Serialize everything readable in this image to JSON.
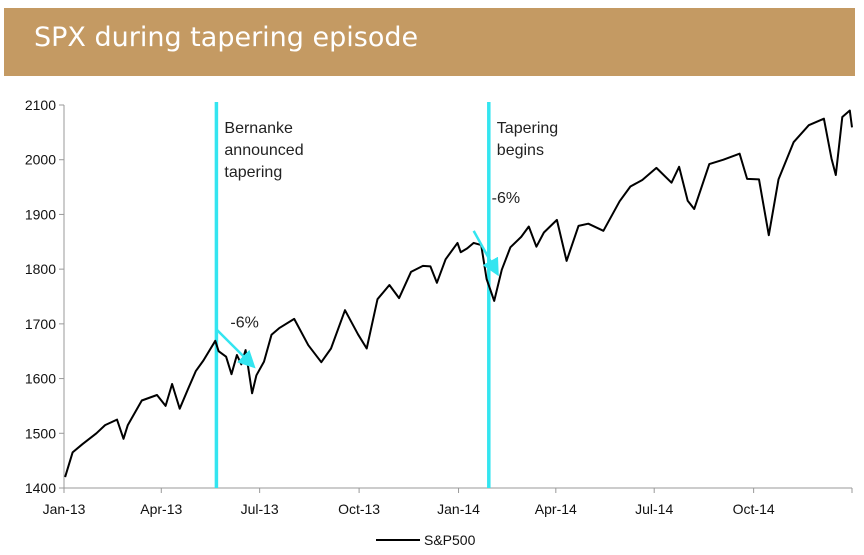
{
  "title": "SPX during tapering episode",
  "chart_data": {
    "type": "line",
    "title": "SPX during tapering episode",
    "xlabel": "",
    "ylabel": "",
    "x_tick_labels": [
      "Jan-13",
      "Apr-13",
      "Jul-13",
      "Oct-13",
      "Jan-14",
      "Apr-14",
      "Jul-14",
      "Oct-14"
    ],
    "y_ticks": [
      1400,
      1500,
      1600,
      1700,
      1800,
      1900,
      2000,
      2100
    ],
    "ylim": [
      1400,
      2100
    ],
    "xlim": [
      "2013-01-01",
      "2014-12-31"
    ],
    "legend": "bottom-center",
    "series": [
      {
        "name": "S&P500",
        "color": "#000000",
        "points": [
          [
            "2013-01-02",
            1420
          ],
          [
            "2013-01-09",
            1465
          ],
          [
            "2013-01-18",
            1480
          ],
          [
            "2013-01-31",
            1500
          ],
          [
            "2013-02-08",
            1515
          ],
          [
            "2013-02-19",
            1525
          ],
          [
            "2013-02-25",
            1490
          ],
          [
            "2013-03-01",
            1515
          ],
          [
            "2013-03-14",
            1560
          ],
          [
            "2013-03-28",
            1570
          ],
          [
            "2013-04-05",
            1550
          ],
          [
            "2013-04-11",
            1590
          ],
          [
            "2013-04-18",
            1545
          ],
          [
            "2013-04-26",
            1582
          ],
          [
            "2013-05-03",
            1614
          ],
          [
            "2013-05-10",
            1633
          ],
          [
            "2013-05-21",
            1669
          ],
          [
            "2013-05-24",
            1650
          ],
          [
            "2013-05-31",
            1640
          ],
          [
            "2013-06-05",
            1608
          ],
          [
            "2013-06-10",
            1643
          ],
          [
            "2013-06-14",
            1626
          ],
          [
            "2013-06-18",
            1652
          ],
          [
            "2013-06-24",
            1573
          ],
          [
            "2013-06-28",
            1606
          ],
          [
            "2013-07-05",
            1631
          ],
          [
            "2013-07-12",
            1680
          ],
          [
            "2013-07-19",
            1692
          ],
          [
            "2013-08-02",
            1709
          ],
          [
            "2013-08-15",
            1661
          ],
          [
            "2013-08-27",
            1630
          ],
          [
            "2013-09-05",
            1655
          ],
          [
            "2013-09-18",
            1725
          ],
          [
            "2013-09-30",
            1681
          ],
          [
            "2013-10-08",
            1655
          ],
          [
            "2013-10-18",
            1745
          ],
          [
            "2013-10-29",
            1771
          ],
          [
            "2013-11-07",
            1747
          ],
          [
            "2013-11-18",
            1795
          ],
          [
            "2013-11-29",
            1806
          ],
          [
            "2013-12-06",
            1805
          ],
          [
            "2013-12-12",
            1775
          ],
          [
            "2013-12-20",
            1818
          ],
          [
            "2013-12-31",
            1848
          ],
          [
            "2014-01-03",
            1831
          ],
          [
            "2014-01-09",
            1838
          ],
          [
            "2014-01-15",
            1848
          ],
          [
            "2014-01-22",
            1844
          ],
          [
            "2014-01-27",
            1782
          ],
          [
            "2014-02-03",
            1742
          ],
          [
            "2014-02-10",
            1799
          ],
          [
            "2014-02-18",
            1840
          ],
          [
            "2014-02-28",
            1859
          ],
          [
            "2014-03-07",
            1878
          ],
          [
            "2014-03-14",
            1841
          ],
          [
            "2014-03-21",
            1867
          ],
          [
            "2014-04-02",
            1890
          ],
          [
            "2014-04-11",
            1815
          ],
          [
            "2014-04-22",
            1879
          ],
          [
            "2014-05-01",
            1883
          ],
          [
            "2014-05-15",
            1870
          ],
          [
            "2014-05-30",
            1924
          ],
          [
            "2014-06-09",
            1951
          ],
          [
            "2014-06-20",
            1963
          ],
          [
            "2014-07-03",
            1985
          ],
          [
            "2014-07-17",
            1958
          ],
          [
            "2014-07-24",
            1987
          ],
          [
            "2014-08-01",
            1925
          ],
          [
            "2014-08-07",
            1910
          ],
          [
            "2014-08-21",
            1992
          ],
          [
            "2014-09-03",
            2000
          ],
          [
            "2014-09-18",
            2011
          ],
          [
            "2014-09-25",
            1965
          ],
          [
            "2014-10-06",
            1964
          ],
          [
            "2014-10-15",
            1862
          ],
          [
            "2014-10-24",
            1964
          ],
          [
            "2014-11-07",
            2032
          ],
          [
            "2014-11-21",
            2063
          ],
          [
            "2014-12-05",
            2075
          ],
          [
            "2014-12-12",
            2002
          ],
          [
            "2014-12-16",
            1972
          ],
          [
            "2014-12-22",
            2078
          ],
          [
            "2014-12-29",
            2090
          ],
          [
            "2014-12-31",
            2059
          ]
        ]
      }
    ],
    "vertical_lines": [
      {
        "date": "2013-05-22",
        "label": "Bernanke announced tapering",
        "label_lines": [
          "Bernanke",
          "announced",
          "tapering"
        ],
        "color": "#33e5f0"
      },
      {
        "date": "2014-01-29",
        "label": "Tapering begins",
        "label_lines": [
          "Tapering",
          "begins"
        ],
        "color": "#33e5f0"
      }
    ],
    "annotations": [
      {
        "text": "-6%",
        "from": [
          "2013-05-22",
          1690
        ],
        "to": [
          "2013-06-24",
          1625
        ],
        "color": "#33e5f0"
      },
      {
        "text": "-6%",
        "from": [
          "2014-01-15",
          1870
        ],
        "to": [
          "2014-02-05",
          1795
        ],
        "color": "#33e5f0"
      }
    ]
  }
}
